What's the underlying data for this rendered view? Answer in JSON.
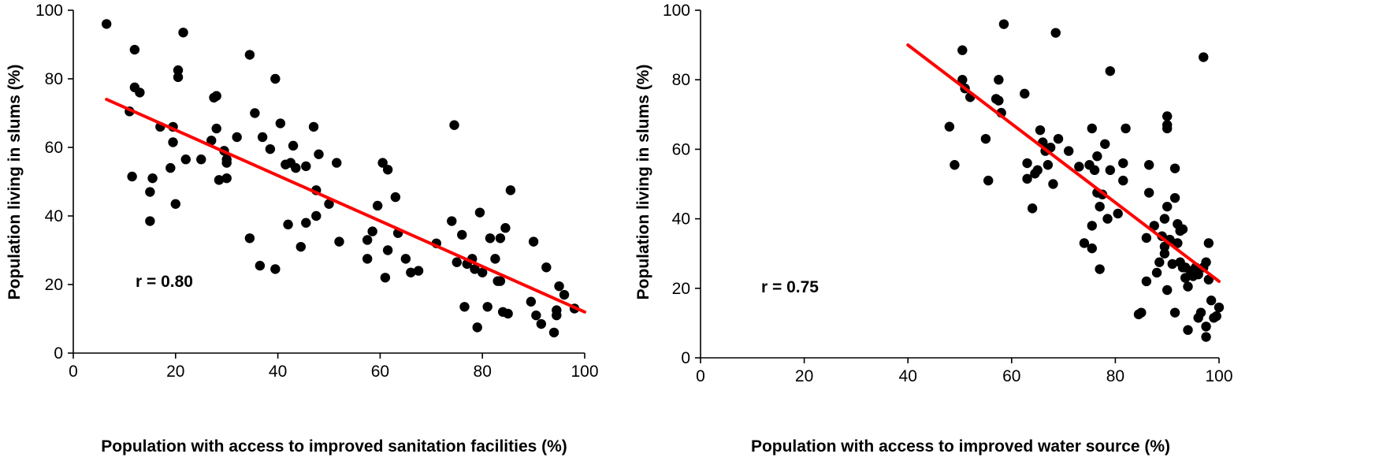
{
  "chart_data": [
    {
      "type": "scatter",
      "xlabel": "Population with access to improved sanitation facilities (%)",
      "ylabel": "Population living in slums (%)",
      "xlim": [
        0,
        100
      ],
      "ylim": [
        0,
        100
      ],
      "xticks": [
        0,
        20,
        40,
        60,
        80,
        100
      ],
      "yticks": [
        0,
        20,
        40,
        60,
        80,
        100
      ],
      "grid": false,
      "annotation": "r = 0.80",
      "trendline": {
        "x": [
          6.5,
          100
        ],
        "y": [
          74,
          12
        ],
        "color": "#ff0000"
      },
      "marker_color": "#000000",
      "points": [
        [
          6.5,
          96
        ],
        [
          11,
          70.5
        ],
        [
          11.5,
          51.5
        ],
        [
          12,
          88.5
        ],
        [
          12,
          77.5
        ],
        [
          13,
          76
        ],
        [
          15,
          38.5
        ],
        [
          15,
          47
        ],
        [
          15.5,
          51
        ],
        [
          17,
          66
        ],
        [
          19,
          54
        ],
        [
          19.5,
          66
        ],
        [
          19.5,
          61.5
        ],
        [
          20,
          43.5
        ],
        [
          20.5,
          80.5
        ],
        [
          20.5,
          82.5
        ],
        [
          21.5,
          93.5
        ],
        [
          22,
          56.5
        ],
        [
          25,
          56.5
        ],
        [
          27,
          62
        ],
        [
          27.5,
          74.5
        ],
        [
          28,
          75
        ],
        [
          28,
          65.5
        ],
        [
          28.5,
          50.5
        ],
        [
          29.5,
          59
        ],
        [
          30,
          55.5
        ],
        [
          30,
          56.5
        ],
        [
          30,
          51
        ],
        [
          32,
          63
        ],
        [
          34.5,
          87
        ],
        [
          34.5,
          33.5
        ],
        [
          35.5,
          70
        ],
        [
          36.5,
          25.5
        ],
        [
          37,
          63
        ],
        [
          38.5,
          59.5
        ],
        [
          39.5,
          24.5
        ],
        [
          39.5,
          80
        ],
        [
          40.5,
          67
        ],
        [
          41.5,
          55
        ],
        [
          42,
          37.5
        ],
        [
          42.5,
          55.5
        ],
        [
          43,
          60.5
        ],
        [
          43.5,
          54
        ],
        [
          44.5,
          31
        ],
        [
          45.5,
          54.5
        ],
        [
          45.5,
          38
        ],
        [
          47,
          66
        ],
        [
          47.5,
          47.5
        ],
        [
          47.5,
          40
        ],
        [
          48,
          58
        ],
        [
          50,
          43.5
        ],
        [
          51.5,
          55.5
        ],
        [
          52,
          32.5
        ],
        [
          57.5,
          33
        ],
        [
          57.5,
          27.5
        ],
        [
          58.5,
          35.5
        ],
        [
          59.5,
          43
        ],
        [
          60.5,
          55.5
        ],
        [
          61,
          22
        ],
        [
          61.5,
          30
        ],
        [
          61.5,
          53.5
        ],
        [
          63,
          45.5
        ],
        [
          63.5,
          35
        ],
        [
          65,
          27.5
        ],
        [
          66,
          23.5
        ],
        [
          67.5,
          24
        ],
        [
          71,
          32
        ],
        [
          74,
          38.5
        ],
        [
          74.5,
          66.5
        ],
        [
          75,
          26.5
        ],
        [
          76,
          34.5
        ],
        [
          76.5,
          13.5
        ],
        [
          77,
          26
        ],
        [
          78,
          27.5
        ],
        [
          78.5,
          24.5
        ],
        [
          79,
          7.5
        ],
        [
          79.5,
          41
        ],
        [
          80,
          23.5
        ],
        [
          81,
          13.5
        ],
        [
          81.5,
          33.5
        ],
        [
          82.5,
          27.5
        ],
        [
          83,
          21
        ],
        [
          83.5,
          21
        ],
        [
          83.5,
          33.5
        ],
        [
          84,
          12
        ],
        [
          84.5,
          36.5
        ],
        [
          85,
          11.5
        ],
        [
          85.5,
          47.5
        ],
        [
          89.5,
          15
        ],
        [
          90,
          32.5
        ],
        [
          90.5,
          11
        ],
        [
          91.5,
          8.5
        ],
        [
          92.5,
          25
        ],
        [
          94,
          6
        ],
        [
          94.5,
          11
        ],
        [
          94.5,
          12.5
        ],
        [
          95,
          19.5
        ],
        [
          96,
          17
        ],
        [
          98,
          13
        ]
      ]
    },
    {
      "type": "scatter",
      "xlabel": "Population with access to improved water source (%)",
      "ylabel": "Population living in slums (%)",
      "xlim": [
        0,
        100
      ],
      "ylim": [
        0,
        100
      ],
      "xticks": [
        0,
        20,
        40,
        60,
        80,
        100
      ],
      "yticks": [
        0,
        20,
        40,
        60,
        80,
        100
      ],
      "grid": false,
      "annotation": "r = 0.75",
      "trendline": {
        "x": [
          40,
          100
        ],
        "y": [
          90,
          22
        ],
        "color": "#ff0000"
      },
      "marker_color": "#000000",
      "points": [
        [
          48,
          66.5
        ],
        [
          49,
          55.5
        ],
        [
          50.5,
          88.5
        ],
        [
          50.5,
          80
        ],
        [
          51,
          77.5
        ],
        [
          52,
          75
        ],
        [
          55,
          63
        ],
        [
          55.5,
          51
        ],
        [
          57,
          74.5
        ],
        [
          57.5,
          74
        ],
        [
          57.5,
          80
        ],
        [
          58,
          70.5
        ],
        [
          58.5,
          96
        ],
        [
          62.5,
          76
        ],
        [
          63,
          56
        ],
        [
          63,
          51.5
        ],
        [
          64,
          43
        ],
        [
          64.5,
          53
        ],
        [
          65,
          54
        ],
        [
          65.5,
          65.5
        ],
        [
          66,
          62
        ],
        [
          66.5,
          59.5
        ],
        [
          67,
          55.5
        ],
        [
          67.5,
          60.5
        ],
        [
          68,
          50
        ],
        [
          68.5,
          93.5
        ],
        [
          69,
          63
        ],
        [
          71,
          59.5
        ],
        [
          73,
          55
        ],
        [
          74,
          33
        ],
        [
          75,
          55.5
        ],
        [
          75.5,
          31.5
        ],
        [
          75.5,
          38
        ],
        [
          75.5,
          66
        ],
        [
          76,
          54
        ],
        [
          76.5,
          58
        ],
        [
          76.5,
          47.5
        ],
        [
          77,
          25.5
        ],
        [
          77,
          43.5
        ],
        [
          77.5,
          47
        ],
        [
          78,
          61.5
        ],
        [
          78.5,
          40
        ],
        [
          79,
          54
        ],
        [
          79,
          82.5
        ],
        [
          80.5,
          41.5
        ],
        [
          81.5,
          51
        ],
        [
          81.5,
          56
        ],
        [
          82,
          66
        ],
        [
          84.5,
          12.5
        ],
        [
          85,
          13
        ],
        [
          86,
          22
        ],
        [
          86,
          34.5
        ],
        [
          86.5,
          47.5
        ],
        [
          86.5,
          55.5
        ],
        [
          87.5,
          38
        ],
        [
          88,
          24.5
        ],
        [
          88.5,
          27.5
        ],
        [
          89,
          35
        ],
        [
          89.5,
          32
        ],
        [
          89.5,
          30
        ],
        [
          89.5,
          40
        ],
        [
          90,
          19.5
        ],
        [
          90,
          43.5
        ],
        [
          90,
          66
        ],
        [
          90,
          67
        ],
        [
          90,
          69.5
        ],
        [
          90.5,
          34
        ],
        [
          91,
          27
        ],
        [
          91.5,
          13
        ],
        [
          91.5,
          54.5
        ],
        [
          91.5,
          46
        ],
        [
          92,
          38.5
        ],
        [
          92,
          33
        ],
        [
          92.5,
          36.5
        ],
        [
          92.5,
          27.5
        ],
        [
          93,
          26
        ],
        [
          93,
          37
        ],
        [
          93.5,
          23
        ],
        [
          93.5,
          26
        ],
        [
          94,
          20.5
        ],
        [
          94,
          8
        ],
        [
          94.5,
          25
        ],
        [
          95,
          24
        ],
        [
          95,
          23.5
        ],
        [
          95.5,
          26
        ],
        [
          96,
          24
        ],
        [
          96,
          11.5
        ],
        [
          96.5,
          13
        ],
        [
          97,
          86.5
        ],
        [
          97,
          26
        ],
        [
          97.5,
          9
        ],
        [
          97.5,
          6
        ],
        [
          98,
          22.5
        ],
        [
          98,
          33
        ],
        [
          98.5,
          16.5
        ],
        [
          99,
          11.5
        ],
        [
          99.5,
          12
        ],
        [
          100,
          14.5
        ],
        [
          97.5,
          27.5
        ]
      ]
    }
  ]
}
